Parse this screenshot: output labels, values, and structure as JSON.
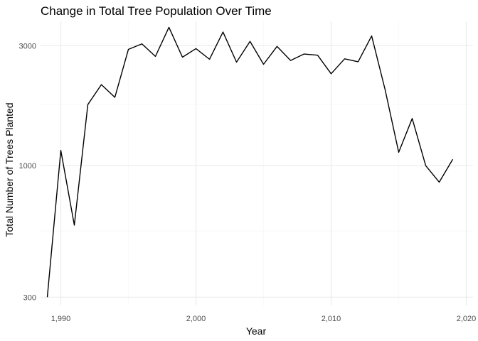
{
  "chart_data": {
    "type": "line",
    "title": "Change in Total Tree Population Over Time",
    "xlabel": "Year",
    "ylabel": "Total Number of Trees Planted",
    "y_scale": "log10",
    "xlim": [
      1988.5,
      2020.5
    ],
    "ylim": [
      278,
      3750
    ],
    "x_ticks": [
      1990,
      2000,
      2010,
      2020
    ],
    "x_tick_labels": [
      "1,990",
      "2,000",
      "2,010",
      "2,020"
    ],
    "x_minor_ticks": [
      1995,
      2005,
      2015
    ],
    "y_ticks": [
      300,
      1000,
      3000
    ],
    "y_tick_labels": [
      "300",
      "1000",
      "3000"
    ],
    "y_minor_ticks": [
      550,
      1750
    ],
    "grid": true,
    "legend": "none",
    "line_color": "#000000",
    "series": [
      {
        "x": [
          1989,
          1990,
          1991,
          1992,
          1993,
          1994,
          1995,
          1996,
          1997,
          1998,
          1999,
          2000,
          2001,
          2002,
          2003,
          2004,
          2005,
          2006,
          2007,
          2008,
          2009,
          2010,
          2011,
          2012,
          2013,
          2014,
          2015,
          2016,
          2017,
          2018,
          2019
        ],
        "y": [
          300,
          1150,
          580,
          1750,
          2100,
          1870,
          2900,
          3050,
          2720,
          3550,
          2700,
          2920,
          2650,
          3400,
          2580,
          3120,
          2530,
          2980,
          2620,
          2780,
          2750,
          2320,
          2660,
          2590,
          3280,
          2000,
          1130,
          1540,
          1000,
          860,
          1060
        ]
      }
    ]
  }
}
